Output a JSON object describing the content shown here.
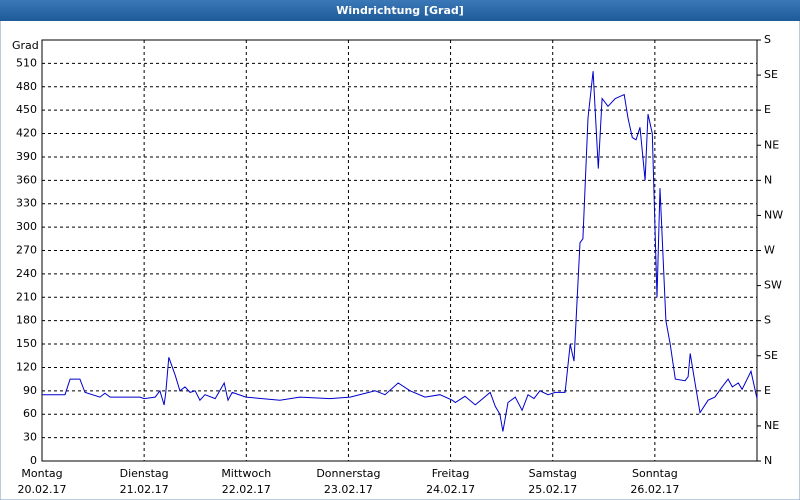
{
  "chart_data": {
    "type": "line",
    "title": "Windrichtung [Grad]",
    "y_label": "Grad",
    "x": [
      0,
      5.4,
      6.6,
      8.9,
      10.1,
      13.6,
      14.8,
      16,
      23,
      24,
      26.6,
      27.7,
      28.7,
      29.1,
      29.8,
      31.3,
      32.4,
      33.6,
      34.8,
      36,
      37.1,
      38.3,
      40.7,
      42.8,
      43.7,
      44.7,
      47.9,
      55.9,
      60.6,
      67.7,
      72.4,
      78.3,
      80.6,
      83.7,
      86.5,
      90,
      93.5,
      96.4,
      97.1,
      99.4,
      101.8,
      105.3,
      106.5,
      107.6,
      108.3,
      109.5,
      111.2,
      112.8,
      114.2,
      115.6,
      117,
      118.9,
      120.6,
      122.9,
      124.1,
      125,
      126.4,
      127.1,
      128.3,
      129.5,
      130.7,
      131.6,
      133,
      134.7,
      136.8,
      137.7,
      138.7,
      139.6,
      140.5,
      141.7,
      142.4,
      143.4,
      144.5,
      145.2,
      146.6,
      147.6,
      148.8,
      151.1,
      151.8,
      152.3,
      153.5,
      154.6,
      156.5,
      158.1,
      159.8,
      161.2,
      162.2,
      163.6,
      164.5,
      166.6,
      168
    ],
    "series": [
      {
        "color": "#0000cc",
        "values": [
          85,
          85,
          105,
          105,
          88,
          82,
          87,
          82,
          82,
          80,
          82,
          90,
          72,
          88,
          133,
          110,
          90,
          95,
          88,
          90,
          78,
          85,
          80,
          100,
          78,
          88,
          82,
          78,
          82,
          80,
          82,
          90,
          85,
          100,
          90,
          82,
          85,
          78,
          75,
          83,
          72,
          88,
          70,
          60,
          38,
          75,
          82,
          65,
          85,
          80,
          90,
          85,
          88,
          88,
          150,
          128,
          280,
          285,
          440,
          500,
          375,
          465,
          455,
          465,
          470,
          440,
          415,
          412,
          428,
          360,
          445,
          420,
          210,
          350,
          180,
          150,
          105,
          103,
          108,
          138,
          98,
          62,
          78,
          82,
          95,
          105,
          95,
          100,
          92,
          115,
          80
        ]
      }
    ],
    "xlim": [
      0,
      168
    ],
    "xticks": [
      {
        "value": 0,
        "label": "Montag"
      },
      {
        "value": 24,
        "label": "Dienstag"
      },
      {
        "value": 48,
        "label": "Mittwoch"
      },
      {
        "value": 72,
        "label": "Donnerstag"
      },
      {
        "value": 96,
        "label": "Freitag"
      },
      {
        "value": 120,
        "label": "Samstag"
      },
      {
        "value": 144,
        "label": "Sonntag"
      }
    ],
    "xtick_dates": [
      "20.02.17",
      "21.02.17",
      "22.02.17",
      "23.02.17",
      "24.02.17",
      "25.02.17",
      "26.02.17"
    ],
    "ylim": [
      0,
      540
    ],
    "yticks": [
      0,
      30,
      60,
      90,
      120,
      150,
      180,
      210,
      240,
      270,
      300,
      330,
      360,
      390,
      420,
      450,
      480,
      510
    ],
    "y2lim": [
      0,
      540
    ],
    "y2ticks": [
      {
        "value": 0,
        "label": "N"
      },
      {
        "value": 45,
        "label": "NE"
      },
      {
        "value": 90,
        "label": "E"
      },
      {
        "value": 135,
        "label": "SE"
      },
      {
        "value": 180,
        "label": "S"
      },
      {
        "value": 225,
        "label": "SW"
      },
      {
        "value": 270,
        "label": "W"
      },
      {
        "value": 315,
        "label": "NW"
      },
      {
        "value": 360,
        "label": "N"
      },
      {
        "value": 405,
        "label": "NE"
      },
      {
        "value": 450,
        "label": "E"
      },
      {
        "value": 495,
        "label": "SE"
      },
      {
        "value": 540,
        "label": "S"
      }
    ],
    "grid": true
  }
}
